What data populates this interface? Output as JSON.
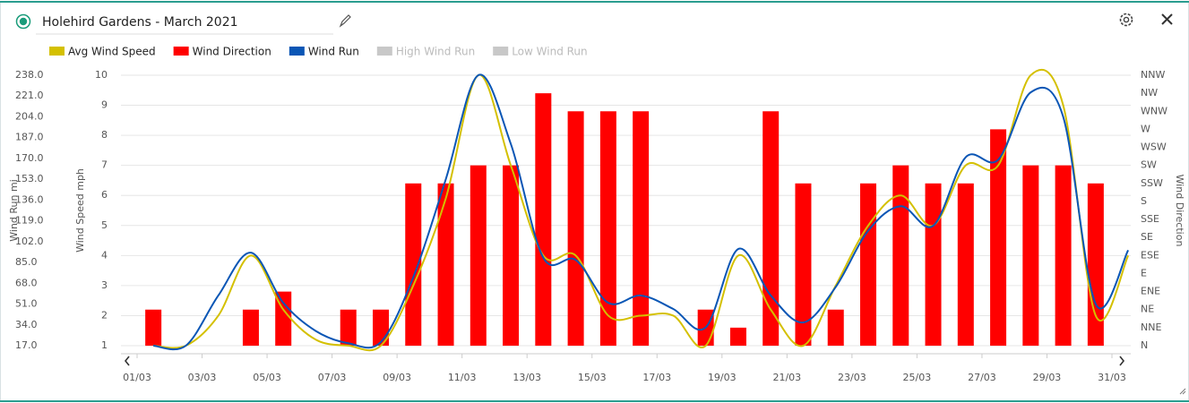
{
  "chart_data": {
    "type": "combo",
    "title": "Holehird Gardens - March 2021",
    "categories": [
      "01/03",
      null,
      "03/03",
      null,
      "05/03",
      null,
      "07/03",
      null,
      "09/03",
      null,
      "11/03",
      null,
      "13/03",
      null,
      "15/03",
      null,
      "17/03",
      null,
      "19/03",
      null,
      "21/03",
      null,
      "23/03",
      null,
      "25/03",
      null,
      "27/03",
      null,
      "29/03",
      null,
      "31/03"
    ],
    "series": [
      {
        "name": "Avg Wind Speed",
        "color": "#d4c000",
        "kind": "line",
        "axis": "y",
        "visible": true,
        "values": [
          1,
          1,
          2,
          4,
          2.2,
          1.2,
          1,
          1,
          3,
          5.9,
          10,
          7,
          4,
          4,
          2,
          2,
          2,
          1,
          4,
          2.2,
          1,
          3,
          5,
          6,
          5,
          7,
          7,
          10,
          9,
          2,
          4
        ]
      },
      {
        "name": "Wind Direction",
        "color": "#ff0000",
        "kind": "bar",
        "axis": "y2",
        "visible": true,
        "values": [
          45,
          null,
          null,
          45,
          67.5,
          null,
          45,
          45,
          202.5,
          202.5,
          225,
          225,
          315,
          292.5,
          292.5,
          292.5,
          null,
          45,
          22.5,
          292.5,
          202.5,
          45,
          202.5,
          225,
          202.5,
          202.5,
          270,
          225,
          225,
          202.5,
          null
        ]
      },
      {
        "name": "Wind Run",
        "color": "#0a56b5",
        "kind": "line",
        "axis": "y3",
        "visible": true,
        "values": [
          17,
          17,
          58,
          93,
          52,
          29,
          19,
          20,
          73,
          153,
          238,
          182,
          89,
          87,
          52,
          58,
          47,
          32,
          96,
          58,
          36,
          65,
          111,
          131,
          115,
          171,
          169,
          224,
          204,
          51,
          95
        ]
      },
      {
        "name": "High Wind Run",
        "color": "#c8c8c8",
        "kind": "line",
        "axis": "y3",
        "visible": false
      },
      {
        "name": "Low Wind Run",
        "color": "#c8c8c8",
        "kind": "line",
        "axis": "y3",
        "visible": false
      }
    ],
    "ylabel": "Wind Speed mph",
    "ylim": [
      1,
      10
    ],
    "yticks": [
      1,
      2,
      3,
      4,
      5,
      6,
      7,
      8,
      9,
      10
    ],
    "y2label": "Wind Direction",
    "y2lim": [
      0,
      337.5
    ],
    "y2ticks": [
      {
        "value": 0,
        "label": "N"
      },
      {
        "value": 22.5,
        "label": "NNE"
      },
      {
        "value": 45,
        "label": "NE"
      },
      {
        "value": 67.5,
        "label": "ENE"
      },
      {
        "value": 90,
        "label": "E"
      },
      {
        "value": 112.5,
        "label": "ESE"
      },
      {
        "value": 135,
        "label": "SE"
      },
      {
        "value": 157.5,
        "label": "SSE"
      },
      {
        "value": 180,
        "label": "S"
      },
      {
        "value": 202.5,
        "label": "SSW"
      },
      {
        "value": 225,
        "label": "SW"
      },
      {
        "value": 247.5,
        "label": "WSW"
      },
      {
        "value": 270,
        "label": "W"
      },
      {
        "value": 292.5,
        "label": "WNW"
      },
      {
        "value": 315,
        "label": "NW"
      },
      {
        "value": 337.5,
        "label": "NNW"
      }
    ],
    "y3label": "Wind Run mi",
    "y3lim": [
      17,
      238
    ],
    "y3ticks": [
      {
        "value": 17,
        "label": "17.0"
      },
      {
        "value": 34,
        "label": "34.0"
      },
      {
        "value": 51,
        "label": "51.0"
      },
      {
        "value": 68,
        "label": "68.0"
      },
      {
        "value": 85,
        "label": "85.0"
      },
      {
        "value": 102,
        "label": "102.0"
      },
      {
        "value": 119,
        "label": "119.0"
      },
      {
        "value": 136,
        "label": "136.0"
      },
      {
        "value": 153,
        "label": "153.0"
      },
      {
        "value": 170,
        "label": "170.0"
      },
      {
        "value": 187,
        "label": "187.0"
      },
      {
        "value": 204,
        "label": "204.0"
      },
      {
        "value": 221,
        "label": "221.0"
      },
      {
        "value": 238,
        "label": "238.0"
      }
    ],
    "grid": true
  }
}
